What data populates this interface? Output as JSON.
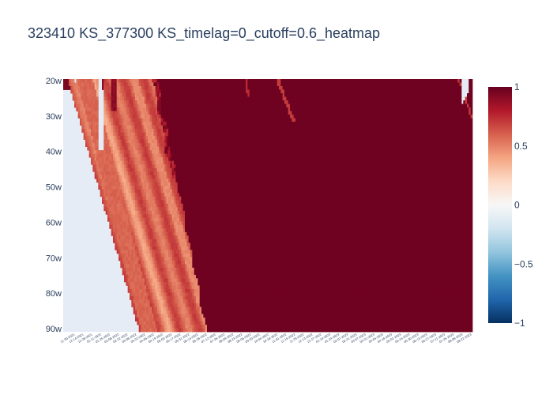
{
  "title": "323410 KS_377300 KS_timelag=0_cutoff=0.6_heatmap",
  "chart_data": {
    "type": "heatmap",
    "title": "323410 KS_377300 KS_timelag=0_cutoff=0.6_heatmap",
    "y_categories": [
      "20w",
      "30w",
      "40w",
      "50w",
      "60w",
      "70w",
      "80w",
      "90w"
    ],
    "x_tick_labels": [
      "11-30-2021",
      "12-14-2021",
      "12-28-2021",
      "01-11-2022",
      "01-25-2022",
      "02-08-2022",
      "02-22-2022",
      "03-08-2022",
      "03-22-2022",
      "04-05-2022",
      "04-19-2022",
      "05-03-2022",
      "05-17-2022",
      "05-31-2022",
      "06-14-2022",
      "06-28-2022",
      "07-12-2022",
      "07-26-2022",
      "08-09-2022",
      "08-23-2022",
      "09-06-2022",
      "09-20-2022",
      "10-04-2022",
      "10-18-2022",
      "11-01-2022",
      "11-15-2022",
      "11-29-2022",
      "12-13-2022",
      "12-27-2022",
      "01-10-2023",
      "01-24-2023",
      "02-07-2023",
      "02-21-2023",
      "03-07-2023",
      "03-21-2023",
      "04-04-2023",
      "04-18-2023",
      "05-02-2023",
      "05-16-2023",
      "05-30-2023",
      "06-13-2023",
      "06-27-2023",
      "07-11-2023",
      "07-25-2023",
      "08-08-2023",
      "08-22-2023"
    ],
    "colorscale": "RdBu_r",
    "zmin": -1,
    "zmax": 1,
    "colorbar_ticks": [
      "1",
      "0.5",
      "0",
      "−0.5",
      "−1"
    ],
    "colorbar_tick_values": [
      1,
      0.5,
      0,
      -0.5,
      -1
    ],
    "colors": {
      "background": "#e5ecf6",
      "high": "#67001f",
      "mid_high": "#d6604d",
      "low_pos": "#f4a582",
      "text": "#2a3f5f"
    }
  }
}
